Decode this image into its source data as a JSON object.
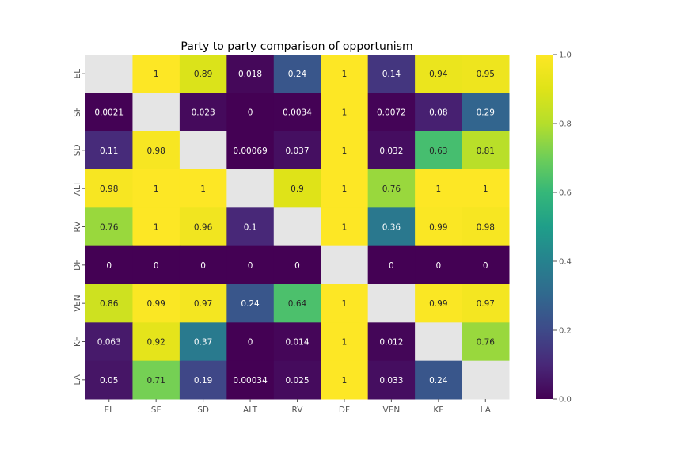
{
  "chart_data": {
    "type": "heatmap",
    "title": "Party to party comparison of opportunism",
    "xlabel": "",
    "ylabel": "",
    "x_categories": [
      "EL",
      "SF",
      "SD",
      "ALT",
      "RV",
      "DF",
      "VEN",
      "KF",
      "LA"
    ],
    "y_categories": [
      "EL",
      "SF",
      "SD",
      "ALT",
      "RV",
      "DF",
      "VEN",
      "KF",
      "LA"
    ],
    "values": [
      [
        null,
        1,
        0.89,
        0.018,
        0.24,
        1,
        0.14,
        0.94,
        0.95
      ],
      [
        0.0021,
        null,
        0.023,
        0,
        0.0034,
        1,
        0.0072,
        0.08,
        0.29
      ],
      [
        0.11,
        0.98,
        null,
        0.00069,
        0.037,
        1,
        0.032,
        0.63,
        0.81
      ],
      [
        0.98,
        1,
        1,
        null,
        0.9,
        1,
        0.76,
        1,
        1
      ],
      [
        0.76,
        1,
        0.96,
        0.1,
        null,
        1,
        0.36,
        0.99,
        0.98
      ],
      [
        0,
        0,
        0,
        0,
        0,
        null,
        0,
        0,
        0
      ],
      [
        0.86,
        0.99,
        0.97,
        0.24,
        0.64,
        1,
        null,
        0.99,
        0.97
      ],
      [
        0.063,
        0.92,
        0.37,
        0,
        0.014,
        1,
        0.012,
        null,
        0.76
      ],
      [
        0.05,
        0.71,
        0.19,
        0.00034,
        0.025,
        1,
        0.033,
        0.24,
        null
      ]
    ],
    "labels": [
      [
        "",
        "1",
        "0.89",
        "0.018",
        "0.24",
        "1",
        "0.14",
        "0.94",
        "0.95"
      ],
      [
        "0.0021",
        "",
        "0.023",
        "0",
        "0.0034",
        "1",
        "0.0072",
        "0.08",
        "0.29"
      ],
      [
        "0.11",
        "0.98",
        "",
        "0.00069",
        "0.037",
        "1",
        "0.032",
        "0.63",
        "0.81"
      ],
      [
        "0.98",
        "1",
        "1",
        "",
        "0.9",
        "1",
        "0.76",
        "1",
        "1"
      ],
      [
        "0.76",
        "1",
        "0.96",
        "0.1",
        "",
        "1",
        "0.36",
        "0.99",
        "0.98"
      ],
      [
        "0",
        "0",
        "0",
        "0",
        "0",
        "",
        "0",
        "0",
        "0"
      ],
      [
        "0.86",
        "0.99",
        "0.97",
        "0.24",
        "0.64",
        "1",
        "",
        "0.99",
        "0.97"
      ],
      [
        "0.063",
        "0.92",
        "0.37",
        "0",
        "0.014",
        "1",
        "0.012",
        "",
        "0.76"
      ],
      [
        "0.05",
        "0.71",
        "0.19",
        "0.00034",
        "0.025",
        "1",
        "0.033",
        "0.24",
        ""
      ]
    ],
    "colormap": "viridis",
    "missing_color": "#e5e5e5",
    "value_range": [
      0,
      1
    ],
    "colorbar_ticks": [
      "0.0",
      "0.2",
      "0.4",
      "0.6",
      "0.8",
      "1.0"
    ],
    "legend": "colorbar-right",
    "grid": false
  }
}
